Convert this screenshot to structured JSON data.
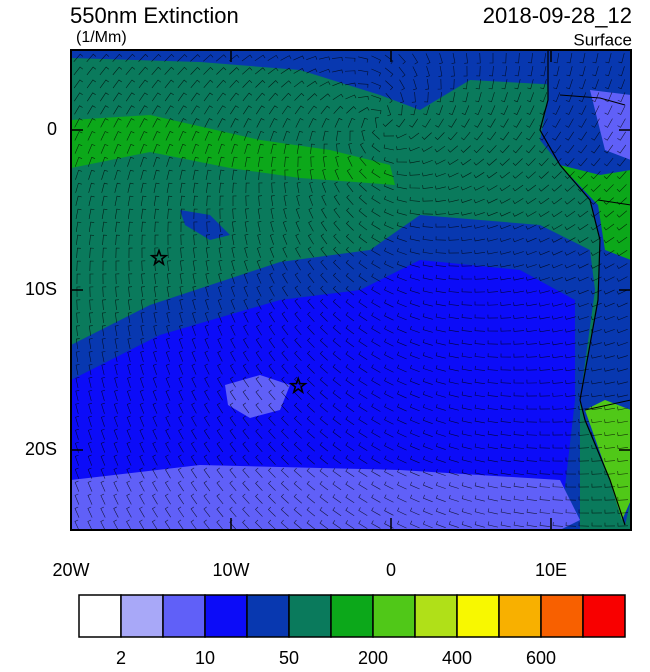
{
  "title": "550nm Extinction",
  "units": "(1/Mm)",
  "date": "2018-09-28_12",
  "level": "Surface",
  "xlim": [
    -20,
    15
  ],
  "ylim": [
    -25,
    5
  ],
  "xticks": [
    {
      "value": -20,
      "label": "20W"
    },
    {
      "value": -10,
      "label": "10W"
    },
    0,
    {
      "value": 10,
      "label": "10E"
    }
  ],
  "yticks": [
    0,
    {
      "value": -10,
      "label": "10S"
    },
    {
      "value": -20,
      "label": "20S"
    }
  ],
  "markers": [
    {
      "lon": -14.5,
      "lat": -8
    },
    {
      "lon": -5.8,
      "lat": -16
    }
  ],
  "colorbar": {
    "colors": [
      "#ffffff",
      "#a8a8f8",
      "#6060f8",
      "#0c0cf8",
      "#0838b0",
      "#0a7a5c",
      "#0ca81a",
      "#50c818",
      "#b0e018",
      "#f8f800",
      "#f8b000",
      "#f86000",
      "#f80000"
    ],
    "labels": [
      2,
      10,
      50,
      200,
      400,
      600
    ]
  }
}
